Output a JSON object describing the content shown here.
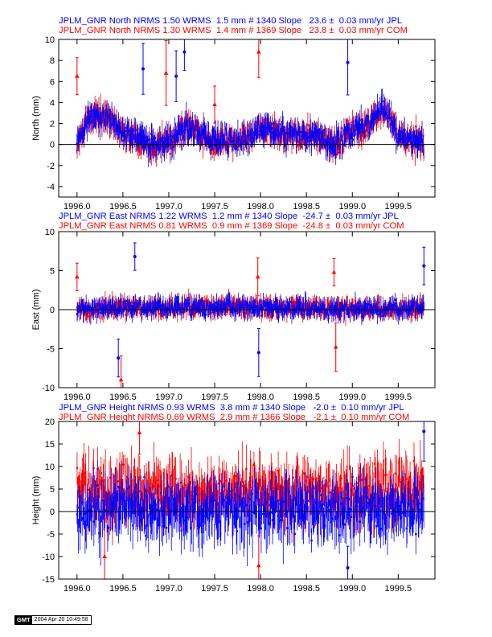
{
  "colors": {
    "jpl": "#0000ff",
    "com": "#ff0000",
    "axis": "#000000"
  },
  "panels": [
    {
      "id": "north",
      "ylabel": "North (mm)",
      "line_jpl": "JPLM_GNR North NRMS 1.50 WRMS  1.5 mm # 1340 Slope   23.6 ±  0.03 mm/yr JPL",
      "line_com": "JPLM_GNR North NRMS 1.30 WRMS  1.4 mm # 1369 Slope   23.8 ±  0.03 mm/yr COM",
      "yticks": [
        "10",
        "8",
        "6",
        "4",
        "2",
        "0",
        "-2",
        "-4"
      ]
    },
    {
      "id": "east",
      "ylabel": "East (mm)",
      "line_jpl": "JPLM_GNR East NRMS 1.22 WRMS  1.2 mm # 1340 Slope  -24.7 ±  0.03 mm/yr JPL",
      "line_com": "JPLM_GNR East NRMS 0.81 WRMS  0.9 mm # 1369 Slope  -24.8 ±  0.03 mm/yr COM",
      "yticks": [
        "10",
        "5",
        "0",
        "-5",
        "-10"
      ]
    },
    {
      "id": "height",
      "ylabel": "Height (mm)",
      "line_jpl": "JPLM_GNR Height NRMS 0.93 WRMS  3.8 mm # 1340 Slope   -2.0 ±  0.10 mm/yr JPL",
      "line_com": "JPLM_GNR Height NRMS 0.69 WRMS  2.9 mm # 1366 Slope   -2.1 ±  0.10 mm/yr COM",
      "yticks": [
        "20",
        "15",
        "10",
        "5",
        "0",
        "-5",
        "-10",
        "-15"
      ]
    }
  ],
  "xticks": [
    "1996.0",
    "1996.5",
    "1997.0",
    "1997.5",
    "1998.0",
    "1998.5",
    "1999.0",
    "1999.5"
  ],
  "footer": {
    "logo": "GMT",
    "timestamp": "2004 Apr 20 10:49:58"
  },
  "chart_data": [
    {
      "type": "scatter",
      "title": "JPLM_GNR North",
      "xlabel": "",
      "ylabel": "North (mm)",
      "xlim": [
        1995.8,
        1999.9
      ],
      "ylim": [
        -5,
        10
      ],
      "grid": false,
      "error_bars": true,
      "series": [
        {
          "name": "JPL",
          "color": "#0000ff",
          "marker": "circle",
          "n_points": 1340,
          "nrms": 1.5,
          "wrms_mm": 1.5,
          "slope_mm_per_yr": 23.6,
          "slope_err": 0.03
        },
        {
          "name": "COM",
          "color": "#ff0000",
          "marker": "triangle",
          "n_points": 1369,
          "nrms": 1.3,
          "wrms_mm": 1.4,
          "slope_mm_per_yr": 23.8,
          "slope_err": 0.03
        }
      ],
      "trend_anchors": {
        "x": [
          1996.0,
          1996.1,
          1996.3,
          1996.5,
          1996.8,
          1997.0,
          1997.2,
          1997.5,
          1997.8,
          1998.0,
          1998.3,
          1998.6,
          1998.8,
          1999.0,
          1999.2,
          1999.35,
          1999.5,
          1999.8
        ],
        "y": [
          0.0,
          2.2,
          2.8,
          1.2,
          -0.2,
          0.1,
          1.8,
          0.2,
          0.4,
          1.5,
          1.0,
          0.8,
          0.0,
          1.2,
          2.0,
          3.5,
          1.0,
          0.0
        ]
      },
      "outliers": [
        {
          "x": 1996.0,
          "y": 6.5
        },
        {
          "x": 1996.72,
          "y": 7.2
        },
        {
          "x": 1996.97,
          "y": 6.8
        },
        {
          "x": 1997.17,
          "y": 8.8
        },
        {
          "x": 1997.98,
          "y": 8.8
        },
        {
          "x": 1998.95,
          "y": 7.8
        },
        {
          "x": 1997.5,
          "y": 3.8
        },
        {
          "x": 1997.08,
          "y": 6.5
        }
      ]
    },
    {
      "type": "scatter",
      "title": "JPLM_GNR East",
      "xlabel": "",
      "ylabel": "East (mm)",
      "xlim": [
        1995.8,
        1999.9
      ],
      "ylim": [
        -10,
        10
      ],
      "grid": false,
      "error_bars": true,
      "series": [
        {
          "name": "JPL",
          "color": "#0000ff",
          "marker": "circle",
          "n_points": 1340,
          "nrms": 1.22,
          "wrms_mm": 1.2,
          "slope_mm_per_yr": -24.7,
          "slope_err": 0.03
        },
        {
          "name": "COM",
          "color": "#ff0000",
          "marker": "triangle",
          "n_points": 1369,
          "nrms": 0.81,
          "wrms_mm": 0.9,
          "slope_mm_per_yr": -24.8,
          "slope_err": 0.03
        }
      ],
      "trend_anchors": {
        "x": [
          1996.0,
          1996.5,
          1997.0,
          1997.5,
          1998.0,
          1998.5,
          1999.0,
          1999.5,
          1999.8
        ],
        "y": [
          0.0,
          0.3,
          0.2,
          0.4,
          0.3,
          0.2,
          0.0,
          0.1,
          0.2
        ]
      },
      "outliers": [
        {
          "x": 1996.0,
          "y": 4.2
        },
        {
          "x": 1996.45,
          "y": -6.2
        },
        {
          "x": 1996.48,
          "y": -9.0
        },
        {
          "x": 1996.63,
          "y": 6.8
        },
        {
          "x": 1997.97,
          "y": 4.2
        },
        {
          "x": 1997.98,
          "y": -5.5
        },
        {
          "x": 1998.8,
          "y": 4.8
        },
        {
          "x": 1999.78,
          "y": 5.6
        },
        {
          "x": 1998.82,
          "y": -4.8
        }
      ]
    },
    {
      "type": "scatter",
      "title": "JPLM_GNR Height",
      "xlabel": "",
      "ylabel": "Height (mm)",
      "xlim": [
        1995.8,
        1999.9
      ],
      "ylim": [
        -15,
        20
      ],
      "grid": false,
      "error_bars": true,
      "series": [
        {
          "name": "JPL",
          "color": "#0000ff",
          "marker": "circle",
          "n_points": 1340,
          "nrms": 0.93,
          "wrms_mm": 3.8,
          "slope_mm_per_yr": -2.0,
          "slope_err": 0.1
        },
        {
          "name": "COM",
          "color": "#ff0000",
          "marker": "triangle",
          "n_points": 1366,
          "nrms": 0.69,
          "wrms_mm": 2.9,
          "slope_mm_per_yr": -2.1,
          "slope_err": 0.1
        }
      ],
      "series_means_mm": {
        "JPL": 0.0,
        "COM": 4.5
      },
      "outliers": [
        {
          "x": 1996.68,
          "y": 17.5
        },
        {
          "x": 1999.78,
          "y": 17.8
        },
        {
          "x": 1996.3,
          "y": -10.0
        },
        {
          "x": 1998.95,
          "y": -12.5
        },
        {
          "x": 1997.98,
          "y": -12.0
        }
      ]
    }
  ]
}
